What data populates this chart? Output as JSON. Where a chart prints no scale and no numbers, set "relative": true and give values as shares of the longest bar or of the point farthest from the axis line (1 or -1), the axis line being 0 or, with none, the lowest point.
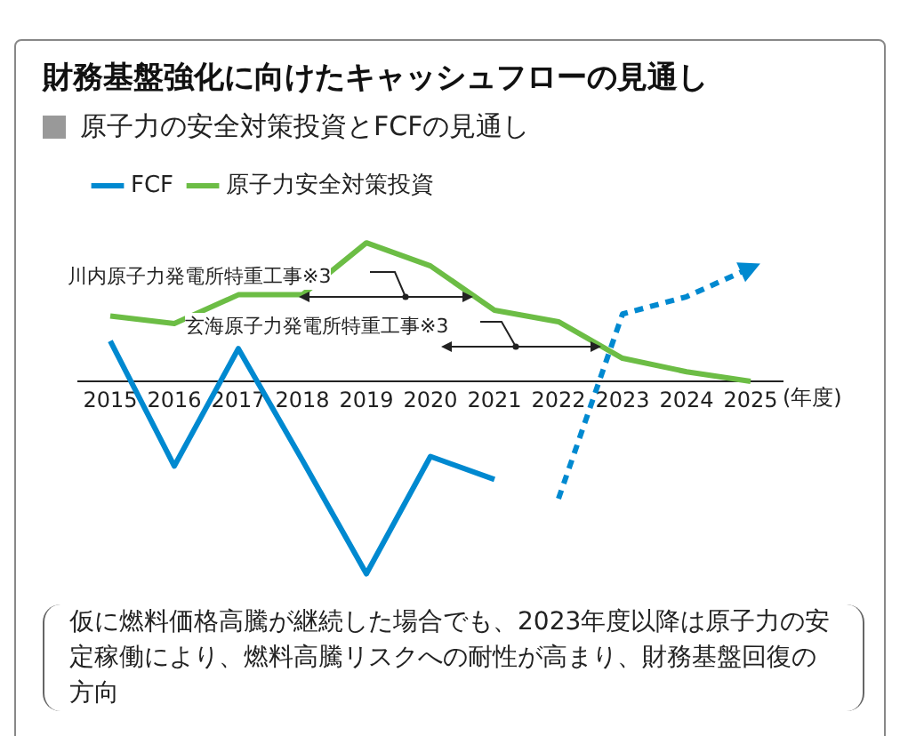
{
  "chart_data": {
    "type": "line",
    "title": "財務基盤強化に向けたキャッシュフローの見通し",
    "subtitle": "原子力の安全対策投資とFCFの見通し",
    "xlabel": "(年度)",
    "relative": true,
    "grid": false,
    "legend": "top left",
    "marker": "none",
    "categories": [
      "2015",
      "2016",
      "2017",
      "2018",
      "2019",
      "2020",
      "2021",
      "2022",
      "2023",
      "2024",
      "2025"
    ],
    "series": [
      {
        "name": "FCF",
        "color": "#0089d0",
        "values": [
          0.21,
          -0.44,
          0.17,
          -0.41,
          -1,
          -0.39,
          -0.51,
          null,
          null,
          null,
          null
        ]
      },
      {
        "color": "#0089d0",
        "line_style": "dashed",
        "values": [
          null,
          null,
          null,
          null,
          null,
          null,
          null,
          -0.61,
          0.35,
          0.44,
          0.59
        ]
      },
      {
        "name": "原子力安全対策投資",
        "color": "#6cbd45",
        "values": [
          0.34,
          0.3,
          0.45,
          0.45,
          0.72,
          0.6,
          0.37,
          0.31,
          0.12,
          0.05,
          0
        ]
      }
    ],
    "annotations": [
      "川内原子力発電所特重工事※3",
      "玄海原子力発電所特重工事※3",
      "仮に燃料価格高騰が継続した場合でも、2023年度以降は原子力の安定稼働により、燃料高騰リスクへの耐性が高まり、財務基盤回復の方向"
    ]
  }
}
